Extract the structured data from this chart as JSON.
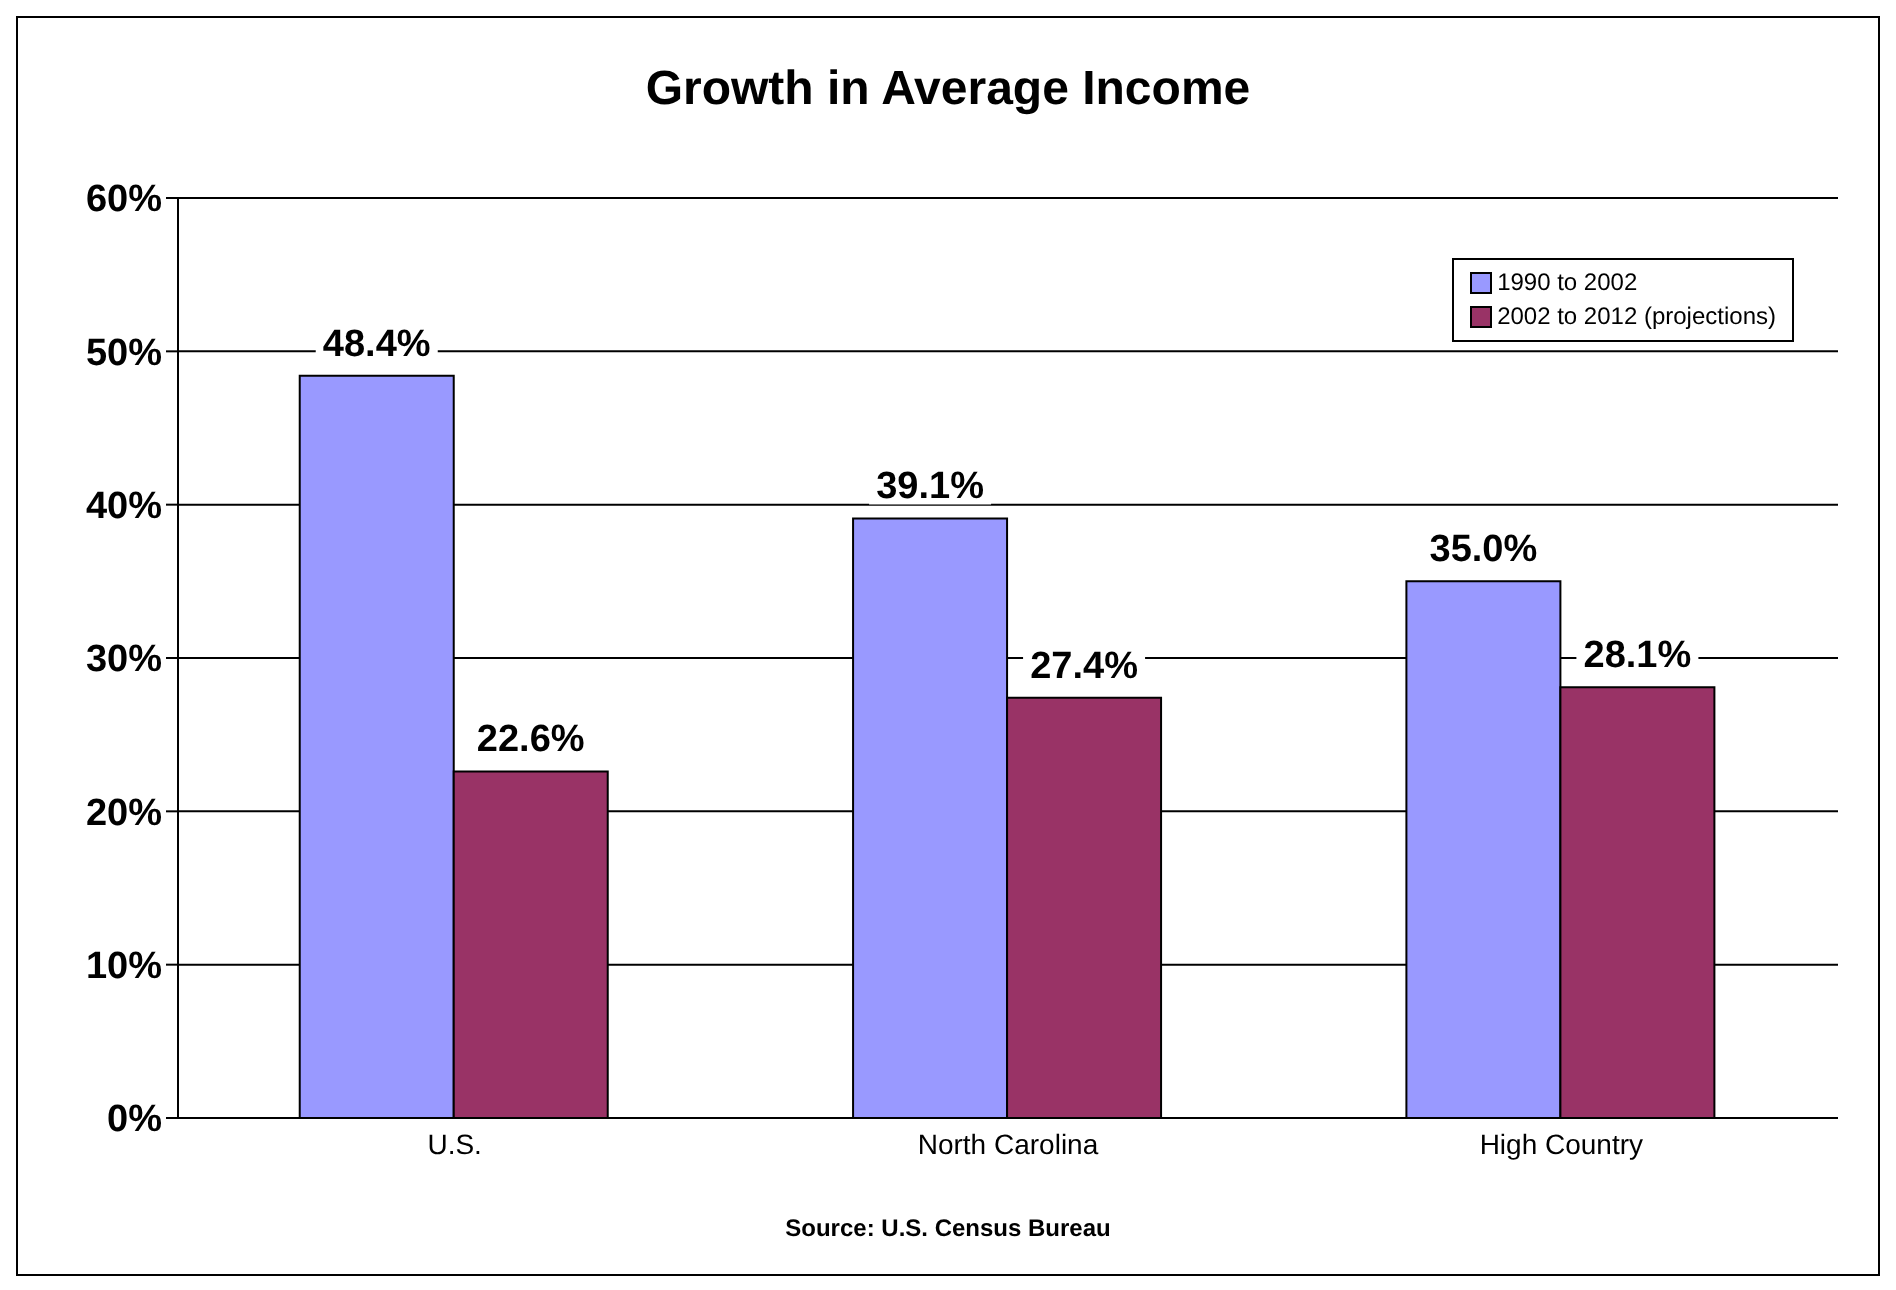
{
  "chart_data": {
    "type": "bar",
    "title": "Growth in Average Income",
    "categories": [
      "U.S.",
      "North Carolina",
      "High Country"
    ],
    "series": [
      {
        "name": "1990 to 2002",
        "color": "#9999ff",
        "values": [
          48.4,
          39.1,
          35.0
        ],
        "value_labels": [
          "48.4%",
          "39.1%",
          "35.0%"
        ]
      },
      {
        "name": "2002 to 2012 (projections)",
        "color": "#993366",
        "values": [
          22.6,
          27.4,
          28.1
        ],
        "value_labels": [
          "22.6%",
          "27.4%",
          "28.1%"
        ]
      }
    ],
    "ylim": [
      0,
      60
    ],
    "yticks": [
      {
        "value": 0,
        "label": "0%"
      },
      {
        "value": 10,
        "label": "10%"
      },
      {
        "value": 20,
        "label": "20%"
      },
      {
        "value": 30,
        "label": "30%"
      },
      {
        "value": 40,
        "label": "40%"
      },
      {
        "value": 50,
        "label": "50%"
      },
      {
        "value": 60,
        "label": "60%"
      }
    ],
    "grid": "y",
    "legend": "top right",
    "annotations": [
      "Source: U.S. Census Bureau"
    ]
  }
}
